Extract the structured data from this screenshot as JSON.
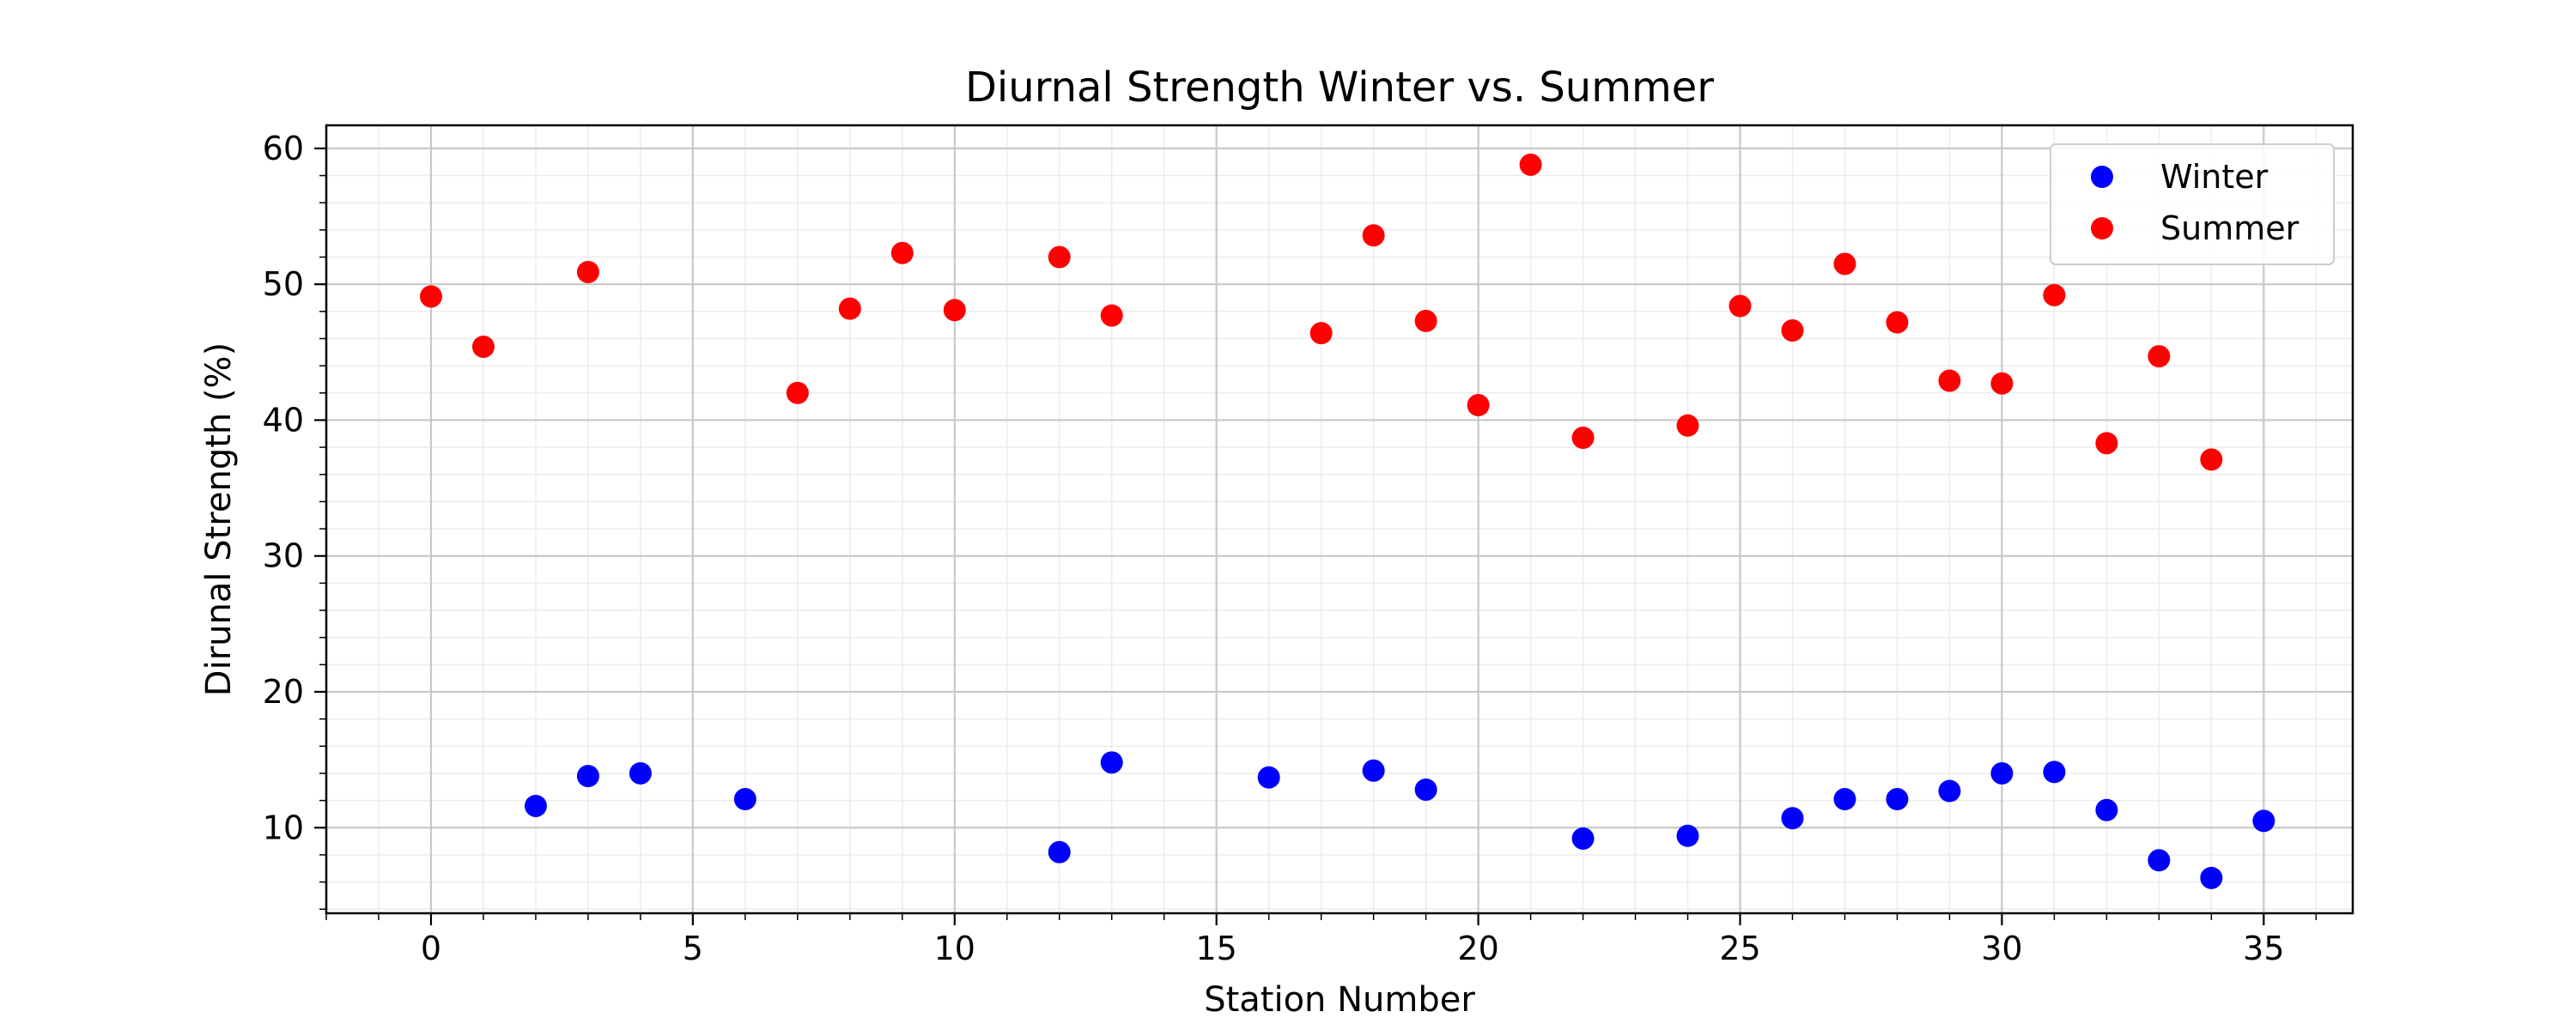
{
  "chart_data": {
    "type": "scatter",
    "title": "Diurnal Strength Winter vs. Summer",
    "xlabel": "Station Number",
    "ylabel": "Dirunal Strength (%)",
    "xlim": [
      -2,
      36.7
    ],
    "ylim": [
      3.7,
      61.7
    ],
    "xticks": [
      0,
      5,
      10,
      15,
      20,
      25,
      30,
      35
    ],
    "yticks": [
      10,
      20,
      30,
      40,
      50,
      60
    ],
    "grid": true,
    "minor_grid": true,
    "legend_position": "top-right",
    "series": [
      {
        "name": "Winter",
        "color": "#0000ff",
        "points": [
          {
            "x": 2,
            "y": 11.6
          },
          {
            "x": 3,
            "y": 13.8
          },
          {
            "x": 4,
            "y": 14.0
          },
          {
            "x": 6,
            "y": 12.1
          },
          {
            "x": 12,
            "y": 8.2
          },
          {
            "x": 13,
            "y": 14.8
          },
          {
            "x": 16,
            "y": 13.7
          },
          {
            "x": 18,
            "y": 14.2
          },
          {
            "x": 19,
            "y": 12.8
          },
          {
            "x": 22,
            "y": 9.2
          },
          {
            "x": 24,
            "y": 9.4
          },
          {
            "x": 26,
            "y": 10.7
          },
          {
            "x": 27,
            "y": 12.1
          },
          {
            "x": 28,
            "y": 12.1
          },
          {
            "x": 29,
            "y": 12.7
          },
          {
            "x": 30,
            "y": 14.0
          },
          {
            "x": 31,
            "y": 14.1
          },
          {
            "x": 32,
            "y": 11.3
          },
          {
            "x": 33,
            "y": 7.6
          },
          {
            "x": 34,
            "y": 6.3
          },
          {
            "x": 35,
            "y": 10.5
          }
        ]
      },
      {
        "name": "Summer",
        "color": "#ff0000",
        "points": [
          {
            "x": 0,
            "y": 49.1
          },
          {
            "x": 1,
            "y": 45.4
          },
          {
            "x": 3,
            "y": 50.9
          },
          {
            "x": 7,
            "y": 42.0
          },
          {
            "x": 8,
            "y": 48.2
          },
          {
            "x": 9,
            "y": 52.3
          },
          {
            "x": 10,
            "y": 48.1
          },
          {
            "x": 12,
            "y": 52.0
          },
          {
            "x": 13,
            "y": 47.7
          },
          {
            "x": 17,
            "y": 46.4
          },
          {
            "x": 18,
            "y": 53.6
          },
          {
            "x": 19,
            "y": 47.3
          },
          {
            "x": 20,
            "y": 41.1
          },
          {
            "x": 21,
            "y": 58.8
          },
          {
            "x": 22,
            "y": 38.7
          },
          {
            "x": 24,
            "y": 39.6
          },
          {
            "x": 25,
            "y": 48.4
          },
          {
            "x": 26,
            "y": 46.6
          },
          {
            "x": 27,
            "y": 51.5
          },
          {
            "x": 28,
            "y": 47.2
          },
          {
            "x": 29,
            "y": 42.9
          },
          {
            "x": 30,
            "y": 42.7
          },
          {
            "x": 31,
            "y": 49.2
          },
          {
            "x": 32,
            "y": 38.3
          },
          {
            "x": 33,
            "y": 44.7
          },
          {
            "x": 34,
            "y": 37.1
          }
        ]
      }
    ]
  }
}
